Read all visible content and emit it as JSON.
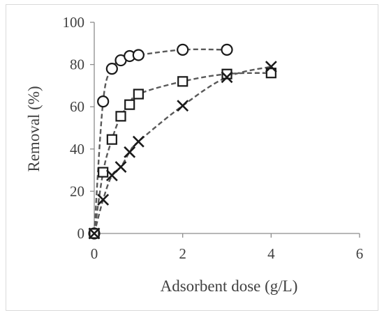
{
  "chart_data": {
    "type": "scatter",
    "title": "",
    "xlabel": "Adsorbent dose (g/L)",
    "ylabel": "Removal (%)",
    "xlim": [
      0,
      6
    ],
    "ylim": [
      0,
      100
    ],
    "x_ticks": [
      0,
      2,
      4,
      6
    ],
    "y_ticks": [
      0,
      20,
      40,
      60,
      80,
      100
    ],
    "x_tick_labels": [
      "0",
      "2",
      "4",
      "6"
    ],
    "y_tick_labels": [
      "0",
      "20",
      "40",
      "60",
      "80",
      "100"
    ],
    "grid": false,
    "legend": "none",
    "line_style": "dashed",
    "line_color": "#595959",
    "marker_color": "#1a1a1a",
    "series": [
      {
        "marker": "circle",
        "x": [
          0,
          0.2,
          0.4,
          0.6,
          0.8,
          1,
          2,
          3
        ],
        "y": [
          0,
          62.5,
          78,
          82,
          84,
          84.5,
          87,
          87
        ]
      },
      {
        "marker": "square",
        "x": [
          0,
          0.2,
          0.4,
          0.6,
          0.8,
          1,
          2,
          3,
          4
        ],
        "y": [
          0,
          29,
          44.5,
          55.5,
          61,
          66,
          72,
          75.5,
          76
        ]
      },
      {
        "marker": "x",
        "x": [
          0,
          0.2,
          0.4,
          0.6,
          0.8,
          1,
          2,
          3,
          4
        ],
        "y": [
          0,
          16,
          27.5,
          31.5,
          38.5,
          43.5,
          60.5,
          74,
          79
        ]
      }
    ]
  }
}
